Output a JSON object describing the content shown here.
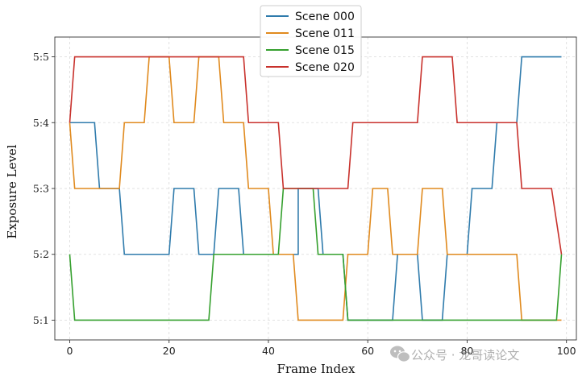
{
  "chart_data": {
    "type": "line",
    "xlabel": "Frame Index",
    "ylabel": "Exposure Level",
    "xlim": [
      -3,
      102
    ],
    "ylim": [
      0.7,
      5.3
    ],
    "grid": true,
    "legend_position": "top-center",
    "x_ticks": [
      0,
      20,
      40,
      60,
      80,
      100
    ],
    "y_ticks": [
      {
        "value": 1,
        "label": "5:1"
      },
      {
        "value": 2,
        "label": "5:2"
      },
      {
        "value": 3,
        "label": "5:3"
      },
      {
        "value": 4,
        "label": "5:4"
      },
      {
        "value": 5,
        "label": "5:5"
      }
    ],
    "series": [
      {
        "name": "Scene 000",
        "color": "#2f7bac",
        "points": [
          [
            0,
            4
          ],
          [
            5,
            4
          ],
          [
            6,
            3
          ],
          [
            10,
            3
          ],
          [
            11,
            2
          ],
          [
            20,
            2
          ],
          [
            21,
            3
          ],
          [
            25,
            3
          ],
          [
            26,
            2
          ],
          [
            29,
            2
          ],
          [
            30,
            3
          ],
          [
            34,
            3
          ],
          [
            35,
            2
          ],
          [
            46,
            2
          ],
          [
            46,
            3
          ],
          [
            50,
            3
          ],
          [
            51,
            2
          ],
          [
            55,
            2
          ],
          [
            56,
            1
          ],
          [
            65,
            1
          ],
          [
            66,
            2
          ],
          [
            70,
            2
          ],
          [
            71,
            1
          ],
          [
            75,
            1
          ],
          [
            76,
            2
          ],
          [
            80,
            2
          ],
          [
            81,
            3
          ],
          [
            85,
            3
          ],
          [
            86,
            4
          ],
          [
            90,
            4
          ],
          [
            91,
            5
          ],
          [
            99,
            5
          ]
        ]
      },
      {
        "name": "Scene 011",
        "color": "#e08a1e",
        "points": [
          [
            0,
            4
          ],
          [
            1,
            3
          ],
          [
            10,
            3
          ],
          [
            11,
            4
          ],
          [
            15,
            4
          ],
          [
            16,
            5
          ],
          [
            20,
            5
          ],
          [
            21,
            4
          ],
          [
            25,
            4
          ],
          [
            26,
            5
          ],
          [
            30,
            5
          ],
          [
            31,
            4
          ],
          [
            35,
            4
          ],
          [
            36,
            3
          ],
          [
            40,
            3
          ],
          [
            41,
            2
          ],
          [
            45,
            2
          ],
          [
            46,
            1
          ],
          [
            55,
            1
          ],
          [
            56,
            2
          ],
          [
            60,
            2
          ],
          [
            61,
            3
          ],
          [
            64,
            3
          ],
          [
            65,
            2
          ],
          [
            70,
            2
          ],
          [
            71,
            3
          ],
          [
            75,
            3
          ],
          [
            76,
            2
          ],
          [
            90,
            2
          ],
          [
            91,
            1
          ],
          [
            99,
            1
          ]
        ]
      },
      {
        "name": "Scene 015",
        "color": "#35a02e",
        "points": [
          [
            0,
            2
          ],
          [
            1,
            1
          ],
          [
            28,
            1
          ],
          [
            29,
            2
          ],
          [
            42,
            2
          ],
          [
            43,
            3
          ],
          [
            49,
            3
          ],
          [
            50,
            2
          ],
          [
            55,
            2
          ],
          [
            56,
            1
          ],
          [
            98,
            1
          ],
          [
            99,
            2
          ]
        ]
      },
      {
        "name": "Scene 020",
        "color": "#c8312c",
        "points": [
          [
            0,
            4
          ],
          [
            1,
            5
          ],
          [
            35,
            5
          ],
          [
            36,
            4
          ],
          [
            42,
            4
          ],
          [
            43,
            3
          ],
          [
            56,
            3
          ],
          [
            57,
            4
          ],
          [
            70,
            4
          ],
          [
            71,
            5
          ],
          [
            77,
            5
          ],
          [
            78,
            4
          ],
          [
            90,
            4
          ],
          [
            91,
            3
          ],
          [
            97,
            3
          ],
          [
            99,
            2
          ]
        ]
      }
    ]
  },
  "watermark": {
    "text": "公众号 · 龙哥读论文",
    "icon": "wechat-icon"
  }
}
